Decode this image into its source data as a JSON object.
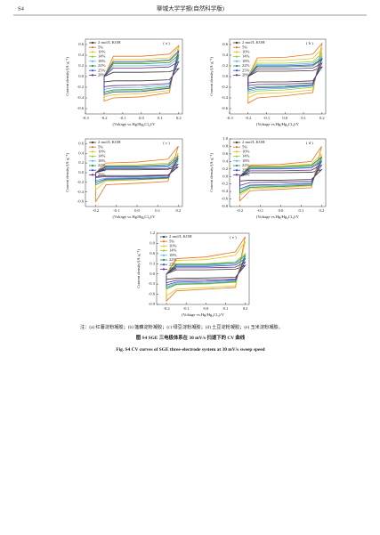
{
  "header": {
    "page": "S4",
    "journal": "聊城大学学报(自然科学版)"
  },
  "chart_data": [
    {
      "type": "line",
      "panel_label": "( a )",
      "x_label": "(Voltage vs.Hg/Hg₂Cl₂)/V",
      "y_label": "Current density/(A·g⁻¹)",
      "xlim": [
        -0.3,
        0.22
      ],
      "xticks": [
        -0.3,
        -0.2,
        -0.1,
        {
          "value": 0,
          "label": "0.0"
        },
        0.1,
        0.2
      ],
      "ylim": [
        -0.7,
        0.7
      ],
      "yticks": [
        -0.6,
        -0.4,
        -0.2,
        {
          "value": 0,
          "label": "0.0"
        },
        0.2,
        0.4,
        0.6
      ],
      "x": [
        -0.2,
        -0.15,
        0,
        0.15,
        0.2,
        0.15,
        0,
        -0.15,
        -0.2
      ],
      "series": [
        {
          "name": "2 mol/L KOH",
          "color": "#333333",
          "values": [
            0,
            0.08,
            0.08,
            0.09,
            0.15,
            -0.06,
            -0.08,
            -0.08,
            -0.1
          ]
        },
        {
          "name": "5%",
          "color": "#e8731a",
          "values": [
            0,
            0.38,
            0.38,
            0.42,
            0.58,
            -0.3,
            -0.38,
            -0.4,
            -0.46
          ]
        },
        {
          "name": "10%",
          "color": "#e8c51a",
          "values": [
            0,
            0.32,
            0.32,
            0.35,
            0.55,
            -0.26,
            -0.32,
            -0.34,
            -0.38
          ]
        },
        {
          "name": "14%",
          "color": "#9acd32",
          "values": [
            0,
            0.26,
            0.26,
            0.29,
            0.45,
            -0.21,
            -0.26,
            -0.27,
            -0.31
          ]
        },
        {
          "name": "18%",
          "color": "#5ab4e0",
          "values": [
            0,
            0.2,
            0.2,
            0.22,
            0.35,
            -0.16,
            -0.2,
            -0.21,
            -0.24
          ]
        },
        {
          "name": "22%",
          "color": "#2e8b57",
          "values": [
            0,
            0.24,
            0.24,
            0.26,
            0.4,
            -0.19,
            -0.24,
            -0.25,
            -0.29
          ]
        },
        {
          "name": "25%",
          "color": "#3050c8",
          "values": [
            0,
            0.28,
            0.28,
            0.31,
            0.48,
            -0.22,
            -0.28,
            -0.29,
            -0.34
          ]
        },
        {
          "name": "28%",
          "color": "#6a2a8a",
          "values": [
            0,
            0.16,
            0.16,
            0.18,
            0.28,
            -0.13,
            -0.16,
            -0.17,
            -0.19
          ]
        }
      ]
    },
    {
      "type": "line",
      "panel_label": "( b )",
      "x_label": "(Voltage vs.Hg/Hg₂Cl₂)/V",
      "y_label": "Current density/(A·g⁻¹)",
      "xlim": [
        -0.3,
        0.22
      ],
      "xticks": [
        -0.3,
        -0.2,
        -0.1,
        {
          "value": 0,
          "label": "0.0"
        },
        0.1,
        0.2
      ],
      "ylim": [
        -0.7,
        0.7
      ],
      "yticks": [
        -0.6,
        -0.4,
        -0.2,
        {
          "value": 0,
          "label": "0.0"
        },
        0.2,
        0.4,
        0.6
      ],
      "x": [
        -0.2,
        -0.15,
        0,
        0.15,
        0.2,
        0.15,
        0,
        -0.15,
        -0.2
      ],
      "series": [
        {
          "name": "2 mol/L KOH",
          "color": "#333333",
          "values": [
            0,
            0.1,
            0.1,
            0.11,
            0.18,
            -0.08,
            -0.1,
            -0.1,
            -0.12
          ]
        },
        {
          "name": "5%",
          "color": "#e8731a",
          "values": [
            0,
            0.35,
            0.36,
            0.42,
            0.62,
            -0.3,
            -0.36,
            -0.4,
            -0.5
          ]
        },
        {
          "name": "10%",
          "color": "#e8c51a",
          "values": [
            0,
            0.3,
            0.3,
            0.34,
            0.52,
            -0.25,
            -0.3,
            -0.32,
            -0.4
          ]
        },
        {
          "name": "14%",
          "color": "#9acd32",
          "values": [
            0,
            0.25,
            0.25,
            0.28,
            0.44,
            -0.2,
            -0.25,
            -0.27,
            -0.32
          ]
        },
        {
          "name": "18%",
          "color": "#5ab4e0",
          "values": [
            0,
            0.22,
            0.22,
            0.25,
            0.38,
            -0.18,
            -0.22,
            -0.24,
            -0.28
          ]
        },
        {
          "name": "22%",
          "color": "#2e8b57",
          "values": [
            0,
            0.18,
            0.18,
            0.2,
            0.32,
            -0.15,
            -0.18,
            -0.19,
            -0.22
          ]
        },
        {
          "name": "25%",
          "color": "#3050c8",
          "values": [
            0,
            0.2,
            0.2,
            0.22,
            0.34,
            -0.16,
            -0.2,
            -0.21,
            -0.25
          ]
        },
        {
          "name": "28%",
          "color": "#6a2a8a",
          "values": [
            0,
            0.14,
            0.14,
            0.16,
            0.25,
            -0.12,
            -0.14,
            -0.15,
            -0.17
          ]
        }
      ]
    },
    {
      "type": "line",
      "panel_label": "( c )",
      "x_label": "(Voltage vs.Hg/Hg₂Cl₂)/V",
      "y_label": "Current density/(A·g⁻¹)",
      "xlim": [
        -0.25,
        0.22
      ],
      "xticks": [
        -0.2,
        -0.1,
        {
          "value": 0,
          "label": "0.0"
        },
        0.1,
        0.2
      ],
      "ylim": [
        -0.7,
        0.7
      ],
      "yticks": [
        -0.6,
        -0.4,
        -0.2,
        {
          "value": 0,
          "label": "0.0"
        },
        0.2,
        0.4,
        0.6
      ],
      "x": [
        -0.2,
        -0.15,
        0,
        0.15,
        0.2,
        0.15,
        0,
        -0.15,
        -0.2
      ],
      "series": [
        {
          "name": "2 mol/L KOH",
          "color": "#333333",
          "values": [
            0,
            0.06,
            0.06,
            0.07,
            0.12,
            -0.05,
            -0.06,
            -0.06,
            -0.08
          ]
        },
        {
          "name": "5%",
          "color": "#e8731a",
          "values": [
            0,
            0.2,
            0.22,
            0.28,
            0.55,
            -0.18,
            -0.22,
            -0.25,
            -0.6
          ]
        },
        {
          "name": "10%",
          "color": "#e8c51a",
          "values": [
            0,
            0.15,
            0.16,
            0.2,
            0.4,
            -0.12,
            -0.15,
            -0.17,
            -0.35
          ]
        },
        {
          "name": "14%",
          "color": "#9acd32",
          "values": [
            0,
            0.12,
            0.12,
            0.14,
            0.3,
            -0.1,
            -0.12,
            -0.13,
            -0.2
          ]
        },
        {
          "name": "18%",
          "color": "#5ab4e0",
          "values": [
            0,
            0.1,
            0.1,
            0.12,
            0.25,
            -0.08,
            -0.1,
            -0.11,
            -0.16
          ]
        },
        {
          "name": "22%",
          "color": "#2e8b57",
          "values": [
            0,
            0.14,
            0.14,
            0.17,
            0.35,
            -0.11,
            -0.14,
            -0.15,
            -0.25
          ]
        },
        {
          "name": "25%",
          "color": "#3050c8",
          "values": [
            0,
            0.12,
            0.12,
            0.14,
            0.3,
            -0.1,
            -0.12,
            -0.13,
            -0.2
          ]
        },
        {
          "name": "28%",
          "color": "#6a2a8a",
          "values": [
            0,
            0.08,
            0.08,
            0.09,
            0.18,
            -0.06,
            -0.08,
            -0.08,
            -0.1
          ]
        }
      ]
    },
    {
      "type": "line",
      "panel_label": "( d )",
      "x_label": "(Voltage vs.Hg/Hg₂Cl₂)/V",
      "y_label": "Current density/(A·g⁻¹)",
      "xlim": [
        -0.25,
        0.22
      ],
      "xticks": [
        -0.2,
        -0.1,
        {
          "value": 0,
          "label": "0.0"
        },
        0.1,
        0.2
      ],
      "ylim": [
        -0.8,
        1.0
      ],
      "yticks": [
        -0.8,
        -0.6,
        -0.4,
        -0.2,
        {
          "value": 0,
          "label": "0.0"
        },
        0.2,
        0.4,
        0.6,
        0.8,
        {
          "value": 1,
          "label": "1.0"
        }
      ],
      "x": [
        -0.2,
        -0.15,
        0,
        0.15,
        0.2,
        0.15,
        0,
        -0.15,
        -0.2
      ],
      "series": [
        {
          "name": "2 mol/L KOH",
          "color": "#333333",
          "values": [
            0,
            0.1,
            0.1,
            0.11,
            0.18,
            -0.08,
            -0.1,
            -0.1,
            -0.12
          ]
        },
        {
          "name": "5%",
          "color": "#e8731a",
          "values": [
            0,
            0.3,
            0.32,
            0.4,
            0.8,
            -0.3,
            -0.34,
            -0.38,
            -0.65
          ]
        },
        {
          "name": "10%",
          "color": "#e8c51a",
          "values": [
            0,
            0.28,
            0.28,
            0.33,
            0.6,
            -0.25,
            -0.3,
            -0.32,
            -0.5
          ]
        },
        {
          "name": "14%",
          "color": "#9acd32",
          "values": [
            0,
            0.24,
            0.24,
            0.28,
            0.5,
            -0.22,
            -0.26,
            -0.28,
            -0.42
          ]
        },
        {
          "name": "18%",
          "color": "#5ab4e0",
          "values": [
            0,
            0.22,
            0.22,
            0.25,
            0.45,
            -0.2,
            -0.24,
            -0.25,
            -0.38
          ]
        },
        {
          "name": "22%",
          "color": "#2e8b57",
          "values": [
            0,
            0.26,
            0.26,
            0.3,
            0.52,
            -0.23,
            -0.27,
            -0.29,
            -0.45
          ]
        },
        {
          "name": "25%",
          "color": "#3050c8",
          "values": [
            0,
            0.2,
            0.2,
            0.23,
            0.4,
            -0.18,
            -0.21,
            -0.23,
            -0.33
          ]
        },
        {
          "name": "28%",
          "color": "#6a2a8a",
          "values": [
            0,
            0.15,
            0.15,
            0.17,
            0.3,
            -0.13,
            -0.15,
            -0.16,
            -0.24
          ]
        }
      ]
    },
    {
      "type": "line",
      "panel_label": "( e )",
      "x_label": "(Voltage vs.Hg/Hg₂Cl₂)/V",
      "y_label": "Current density/(A·g⁻¹)",
      "xlim": [
        -0.25,
        0.22
      ],
      "xticks": [
        -0.2,
        -0.1,
        {
          "value": 0,
          "label": "0.0"
        },
        0.1,
        0.2
      ],
      "ylim": [
        -0.9,
        1.2
      ],
      "yticks": [
        -0.9,
        -0.6,
        -0.3,
        {
          "value": 0,
          "label": "0.0"
        },
        0.3,
        0.6,
        0.9,
        1.2
      ],
      "x": [
        -0.2,
        -0.15,
        0,
        0.15,
        0.2,
        0.15,
        0,
        -0.15,
        -0.2
      ],
      "series": [
        {
          "name": "2 mol/L KOH",
          "color": "#333333",
          "values": [
            0,
            0.12,
            0.12,
            0.14,
            0.25,
            -0.1,
            -0.12,
            -0.13,
            -0.16
          ]
        },
        {
          "name": "5%",
          "color": "#e8731a",
          "values": [
            0,
            0.45,
            0.5,
            0.65,
            1.1,
            -0.4,
            -0.45,
            -0.5,
            -0.8
          ]
        },
        {
          "name": "10%",
          "color": "#e8c51a",
          "values": [
            0,
            0.4,
            0.42,
            0.55,
            0.95,
            -0.35,
            -0.4,
            -0.45,
            -0.65
          ]
        },
        {
          "name": "14%",
          "color": "#9acd32",
          "values": [
            0,
            0.3,
            0.3,
            0.36,
            0.6,
            -0.25,
            -0.3,
            -0.32,
            -0.45
          ]
        },
        {
          "name": "18%",
          "color": "#5ab4e0",
          "values": [
            0,
            0.25,
            0.25,
            0.3,
            0.5,
            -0.2,
            -0.25,
            -0.27,
            -0.38
          ]
        },
        {
          "name": "22%",
          "color": "#2e8b57",
          "values": [
            0,
            0.28,
            0.28,
            0.33,
            0.55,
            -0.23,
            -0.28,
            -0.3,
            -0.42
          ]
        },
        {
          "name": "25%",
          "color": "#3050c8",
          "values": [
            0,
            0.22,
            0.22,
            0.26,
            0.45,
            -0.18,
            -0.22,
            -0.24,
            -0.33
          ]
        },
        {
          "name": "28%",
          "color": "#6a2a8a",
          "values": [
            0,
            0.18,
            0.18,
            0.2,
            0.35,
            -0.15,
            -0.18,
            -0.19,
            -0.26
          ]
        }
      ]
    }
  ],
  "caption": {
    "note": "注：(a) 红薯淀粉凝胶；(b) 莲藕淀粉凝胶；(c) 绿豆淀粉凝胶；(d) 土豆淀粉凝胶；(e) 玉米淀粉凝胶。",
    "title_cn": "图 S4   SGE 三电极体系在 30 mV/s 扫速下的 CV 曲线",
    "title_en": "Fig. S4   CV curves of SGE three-electrode system at 30 mV/s sweep speed"
  }
}
